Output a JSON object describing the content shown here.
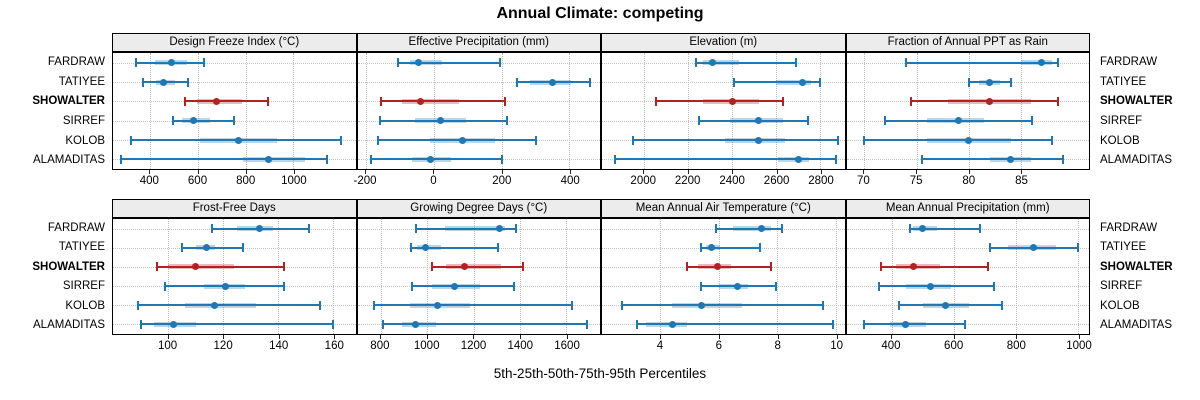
{
  "title": "Annual Climate: competing",
  "caption": "5th-25th-50th-75th-95th Percentiles",
  "stations": [
    "FARDRAW",
    "TATIYEE",
    "SHOWALTER",
    "SIRREF",
    "KOLOB",
    "ALAMADITAS"
  ],
  "highlight_station": "SHOWALTER",
  "colors": {
    "series_normal": "#1f77b4",
    "series_highlight": "#b22222",
    "strip_background": "#ececec",
    "panel_border": "#000000",
    "gridline": "#c0c0c0"
  },
  "chart_data": {
    "type": "dotplot-intervals",
    "percentiles": [
      5,
      25,
      50,
      75,
      95
    ],
    "legend_note": "median dot, 25-75 thick band, 5-95 whisker line",
    "grid": "dotted",
    "rows_layout": [
      [
        0,
        1,
        2,
        3
      ],
      [
        4,
        5,
        6,
        7
      ]
    ],
    "panels": [
      {
        "title": "Design Freeze Index (°C)",
        "xlim": [
          245,
          1260
        ],
        "ticks": [
          400,
          600,
          800,
          1000
        ],
        "values": {
          "FARDRAW": [
            340,
            420,
            490,
            555,
            625
          ],
          "TATIYEE": [
            370,
            425,
            455,
            505,
            560
          ],
          "SHOWALTER": [
            545,
            595,
            680,
            785,
            895
          ],
          "SIRREF": [
            495,
            535,
            580,
            650,
            750
          ],
          "KOLOB": [
            320,
            610,
            770,
            930,
            1200
          ],
          "ALAMADITAS": [
            280,
            790,
            895,
            1050,
            1140
          ]
        }
      },
      {
        "title": "Effective Precipitation (mm)",
        "xlim": [
          -225,
          490
        ],
        "ticks": [
          -200,
          0,
          200,
          400
        ],
        "values": {
          "FARDRAW": [
            -105,
            -70,
            -45,
            25,
            195
          ],
          "TATIYEE": [
            245,
            285,
            350,
            405,
            460
          ],
          "SHOWALTER": [
            -155,
            -95,
            -40,
            75,
            210
          ],
          "SIRREF": [
            -160,
            -55,
            20,
            95,
            215
          ],
          "KOLOB": [
            -165,
            -10,
            85,
            180,
            300
          ],
          "ALAMADITAS": [
            -185,
            -65,
            -10,
            50,
            200
          ]
        }
      },
      {
        "title": "Elevation (m)",
        "xlim": [
          1810,
          2910
        ],
        "ticks": [
          2000,
          2200,
          2400,
          2600,
          2800
        ],
        "values": {
          "FARDRAW": [
            2235,
            2270,
            2310,
            2430,
            2690
          ],
          "TATIYEE": [
            2410,
            2600,
            2720,
            2760,
            2800
          ],
          "SHOWALTER": [
            2055,
            2270,
            2400,
            2520,
            2630
          ],
          "SIRREF": [
            2250,
            2390,
            2520,
            2630,
            2745
          ],
          "KOLOB": [
            1950,
            2370,
            2520,
            2640,
            2880
          ],
          "ALAMADITAS": [
            1870,
            2610,
            2700,
            2750,
            2870
          ]
        }
      },
      {
        "title": "Fraction of Annual PPT as Rain",
        "xlim": [
          68.3,
          91.5
        ],
        "ticks": [
          70,
          75,
          80,
          85
        ],
        "values": {
          "FARDRAW": [
            74,
            85,
            87,
            88,
            88.5
          ],
          "TATIYEE": [
            80,
            81,
            82,
            83,
            84
          ],
          "SHOWALTER": [
            74.5,
            78,
            82,
            86,
            88.5
          ],
          "SIRREF": [
            72,
            76,
            79,
            81.5,
            86
          ],
          "KOLOB": [
            70,
            76,
            80,
            84,
            88
          ],
          "ALAMADITAS": [
            75.5,
            82,
            84,
            86,
            89
          ]
        }
      },
      {
        "title": "Frost-Free Days",
        "xlim": [
          80,
          168
        ],
        "ticks": [
          100,
          120,
          140,
          160
        ],
        "values": {
          "FARDRAW": [
            116,
            125,
            133,
            138,
            151
          ],
          "TATIYEE": [
            105,
            110,
            114,
            117,
            127
          ],
          "SHOWALTER": [
            96,
            100,
            110,
            124,
            142
          ],
          "SIRREF": [
            99,
            113,
            121,
            128,
            142
          ],
          "KOLOB": [
            89,
            106,
            117,
            132,
            155
          ],
          "ALAMADITAS": [
            90,
            95,
            102,
            110,
            160
          ]
        }
      },
      {
        "title": "Growing Degree Days (°C)",
        "xlim": [
          700,
          1745
        ],
        "ticks": [
          800,
          1000,
          1200,
          1400,
          1600
        ],
        "values": {
          "FARDRAW": [
            950,
            1075,
            1310,
            1335,
            1385
          ],
          "TATIYEE": [
            930,
            955,
            995,
            1060,
            1305
          ],
          "SHOWALTER": [
            1020,
            1080,
            1160,
            1320,
            1415
          ],
          "SIRREF": [
            935,
            1020,
            1120,
            1230,
            1375
          ],
          "KOLOB": [
            770,
            925,
            1045,
            1185,
            1625
          ],
          "ALAMADITAS": [
            810,
            890,
            950,
            1040,
            1690
          ]
        }
      },
      {
        "title": "Mean Annual Air Temperature (°C)",
        "xlim": [
          2.0,
          10.3
        ],
        "ticks": [
          4,
          6,
          8,
          10
        ],
        "values": {
          "FARDRAW": [
            5.9,
            6.5,
            7.45,
            7.8,
            8.15
          ],
          "TATIYEE": [
            5.4,
            5.55,
            5.75,
            6.05,
            7.4
          ],
          "SHOWALTER": [
            4.9,
            5.3,
            5.95,
            6.4,
            7.8
          ],
          "SIRREF": [
            5.4,
            6.0,
            6.65,
            7.0,
            7.95
          ],
          "KOLOB": [
            2.7,
            4.4,
            5.4,
            6.8,
            9.55
          ],
          "ALAMADITAS": [
            3.2,
            3.5,
            4.4,
            4.9,
            9.9
          ]
        }
      },
      {
        "title": "Mean Annual Precipitation (mm)",
        "xlim": [
          255,
          1035
        ],
        "ticks": [
          400,
          600,
          800,
          1000
        ],
        "values": {
          "FARDRAW": [
            460,
            470,
            500,
            545,
            685
          ],
          "TATIYEE": [
            715,
            775,
            855,
            930,
            1000
          ],
          "SHOWALTER": [
            365,
            415,
            470,
            555,
            710
          ],
          "SIRREF": [
            360,
            445,
            525,
            590,
            730
          ],
          "KOLOB": [
            425,
            500,
            575,
            650,
            755
          ],
          "ALAMADITAS": [
            310,
            395,
            445,
            510,
            635
          ]
        }
      }
    ]
  }
}
